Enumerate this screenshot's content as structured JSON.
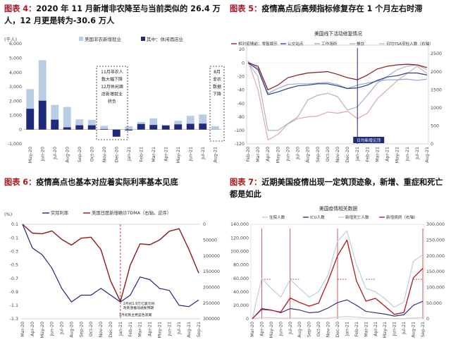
{
  "chart_data": [
    {
      "type": "bar",
      "label": "图表 4：",
      "title": "2020 年 11 月新增非农降至与当前类似的 26.4 万人，12 月更是转为-30.6 万人",
      "unit_label": "(千人)",
      "legend": [
        "美国非农新增就业",
        "其中：休闲酒店业"
      ],
      "legend_position": "top",
      "categories": [
        "May-20",
        "Jun-20",
        "Jul-20",
        "Aug-20",
        "Sep-20",
        "Oct-20",
        "Nov-20",
        "Dec-20",
        "Jan-21",
        "Feb-21",
        "Mar-21",
        "Apr-21",
        "May-21",
        "Jun-21",
        "Jul-21",
        "Aug-21"
      ],
      "series": [
        {
          "name": "美国非农新增就业",
          "color": "#b8cce4",
          "values": [
            2833,
            4846,
            1726,
            1583,
            716,
            680,
            264,
            -306,
            233,
            536,
            785,
            269,
            614,
            962,
            1053,
            235
          ]
        },
        {
          "name": "其中：休闲酒店业",
          "color": "#1f2a7a",
          "values": [
            1454,
            2018,
            690,
            158,
            300,
            300,
            40,
            -498,
            -61,
            390,
            322,
            295,
            363,
            403,
            415,
            0
          ]
        }
      ],
      "ylim": [
        -1000,
        6000
      ],
      "yticks": [
        "6,000",
        "5,000",
        "4,000",
        "3,000",
        "2,000",
        "1,000",
        "0",
        "-1,000"
      ],
      "annotations": [
        {
          "text_lines": [
            "11月非农人",
            "数大幅下降",
            "12月休闲酒",
            "店新增就业",
            "转负"
          ]
        },
        {
          "text_lines": [
            "8月",
            "非农",
            "数据",
            "下降"
          ]
        }
      ]
    },
    {
      "type": "line",
      "label": "图表 5：",
      "title": "疫情高点后高频指标修复存在 1 个月左右时滞",
      "chart_title": "美国线下活动修复情况",
      "legend": [
        "相对疫情前：零售娱乐",
        "公交站点",
        "工作场所",
        "餐饮",
        "日均TSA安检人数（右轴）"
      ],
      "legend_position": "top",
      "x_ticks": [
        "Feb-20",
        "Mar-20",
        "Apr-20",
        "May-20",
        "Jun-20",
        "Jul-20",
        "Aug-20",
        "Sep-20",
        "Oct-20",
        "Nov-20",
        "Dec-20",
        "Jan-21",
        "Feb-21",
        "Mar-21",
        "Apr-21",
        "May-21",
        "Jun-21",
        "Jul-21",
        "Aug-21"
      ],
      "y_left_ticks": [
        "20",
        "0",
        "-20",
        "-40",
        "-60",
        "-80",
        "-100",
        "-120"
      ],
      "y_right_ticks": [
        "2500",
        "2000",
        "1500",
        "1000",
        "500",
        "0"
      ],
      "ylim_left": [
        -120,
        20
      ],
      "ylim_right": [
        0,
        2500
      ],
      "annotation": "日均新增见顶",
      "series": [
        {
          "name": "相对疫情前：零售娱乐",
          "color": "#8b1a1a",
          "axis": "left",
          "values": [
            0,
            -5,
            -40,
            -33,
            -22,
            -18,
            -15,
            -14,
            -13,
            -17,
            -22,
            -25,
            -18,
            -9,
            -5,
            -3,
            -2,
            -3,
            -7
          ]
        },
        {
          "name": "公交站点",
          "color": "#2a3d8f",
          "axis": "left",
          "values": [
            0,
            -10,
            -47,
            -43,
            -38,
            -34,
            -33,
            -31,
            -31,
            -34,
            -38,
            -37,
            -33,
            -26,
            -21,
            -19,
            -15,
            -15,
            -18
          ]
        },
        {
          "name": "工作场所",
          "color": "#9aa8cc",
          "axis": "left",
          "values": [
            2,
            -8,
            -45,
            -38,
            -32,
            -31,
            -31,
            -30,
            -29,
            -32,
            -38,
            -33,
            -30,
            -27,
            -25,
            -25,
            -24,
            -26,
            -24
          ]
        },
        {
          "name": "餐饮",
          "color": "#aab4cc",
          "axis": "left",
          "values": [
            0,
            -20,
            -100,
            -100,
            -90,
            -80,
            -55,
            -48,
            -45,
            -50,
            -70,
            -65,
            -48,
            -30,
            -20,
            -10,
            -5,
            -3,
            -10
          ]
        },
        {
          "name": "日均TSA安检人数（右轴）",
          "color": "#e0a8a8",
          "axis": "right",
          "values": [
            2300,
            1500,
            110,
            260,
            550,
            700,
            750,
            770,
            880,
            850,
            900,
            700,
            850,
            1250,
            1500,
            1750,
            1950,
            2150,
            1950
          ]
        }
      ]
    },
    {
      "type": "line",
      "label": "图表 6：",
      "title": "疫情高点也基本对应着实际利率基本见底",
      "unit_label": "(%)",
      "legend": [
        "实际利率",
        "美国日度新增确诊7DMA（右轴，逆序）"
      ],
      "legend_position": "top",
      "x_ticks": [
        "Mar-20",
        "Apr-20",
        "May-20",
        "Jun-20",
        "Jul-20",
        "Aug-20",
        "Sep-20",
        "Oct-20",
        "Nov-20",
        "Dec-20",
        "Jan-21",
        "Feb-21",
        "Mar-21",
        "Apr-21",
        "May-21",
        "Jun-21",
        "Jul-21",
        "Aug-21",
        "Sep-21"
      ],
      "y_left_ticks": [
        "0.1",
        "-0.1",
        "-0.3",
        "-0.5",
        "-0.7",
        "-0.9",
        "-1.1",
        "-1.3"
      ],
      "y_right_ticks": [
        "0",
        "50000",
        "100000",
        "150000",
        "200000",
        "250000",
        "300000"
      ],
      "ylim_left": [
        -1.3,
        0.1
      ],
      "ylim_right_inverted": [
        300000,
        0
      ],
      "annotations": [
        "2月初1.9万亿美元财",
        "政刺激推动通胀预期",
        "1月初民主党蓝色浪潮"
      ],
      "series": [
        {
          "name": "实际利率",
          "color": "#1f2a7a",
          "axis": "left",
          "values": [
            0.1,
            -0.25,
            -0.35,
            -0.55,
            -0.85,
            -1.05,
            -0.95,
            -0.95,
            -0.85,
            -0.95,
            -1.05,
            -0.95,
            -0.68,
            -0.72,
            -0.85,
            -0.88,
            -1.1,
            -1.12,
            -1.02
          ]
        },
        {
          "name": "美国日度新增确诊7DMA（右轴，逆序）",
          "color": "#8b1a1a",
          "axis": "right",
          "values": [
            0,
            28000,
            30000,
            21000,
            48000,
            66000,
            44000,
            41000,
            80000,
            180000,
            245000,
            130000,
            62000,
            65000,
            50000,
            22000,
            14000,
            80000,
            155000
          ]
        }
      ]
    },
    {
      "type": "line",
      "label": "图表 7：",
      "title": "近期美国疫情出现一定筑顶迹象，新增、重症和死亡都是如此",
      "chart_title": "美国疫情相关数据",
      "legend": [
        "住院人数",
        "ICU人数",
        "新增死亡人数",
        "新增病例（右轴）"
      ],
      "legend_position": "top",
      "x_ticks": [
        "Mar-20",
        "Apr-20",
        "May-20",
        "Jun-20",
        "Jul-20",
        "Aug-20",
        "Sep-20",
        "Oct-20",
        "Nov-20",
        "Dec-20",
        "Jan-21",
        "Feb-21",
        "Mar-21",
        "Apr-21",
        "May-21",
        "Jun-21",
        "Jul-21",
        "Aug-21",
        "Sep-21"
      ],
      "y_left_ticks": [
        "140,000",
        "120,000",
        "100,000",
        "80,000",
        "60,000",
        "40,000",
        "20,000",
        "0"
      ],
      "y_right_ticks": [
        "300,000",
        "250,000",
        "200,000",
        "150,000",
        "100,000",
        "50,000",
        "0"
      ],
      "ylim_left": [
        0,
        140000
      ],
      "ylim_right": [
        0,
        300000
      ],
      "series": [
        {
          "name": "住院人数",
          "color": "#b8c8e0",
          "axis": "left",
          "values": [
            0,
            60000,
            45000,
            32000,
            58000,
            45000,
            32000,
            40000,
            65000,
            115000,
            130000,
            80000,
            45000,
            40000,
            30000,
            17000,
            25000,
            85000,
            95000
          ]
        },
        {
          "name": "ICU人数",
          "color": "#1f2a7a",
          "axis": "left",
          "values": [
            0,
            15000,
            13000,
            9000,
            15000,
            13000,
            9000,
            10000,
            16000,
            24000,
            28000,
            20000,
            11000,
            9000,
            7000,
            4000,
            6000,
            20000,
            26000
          ]
        },
        {
          "name": "新增死亡人数",
          "color": "#d8c4c4",
          "axis": "left",
          "values": [
            0,
            2100,
            1600,
            900,
            1000,
            1100,
            800,
            800,
            1200,
            2500,
            3300,
            2500,
            1300,
            800,
            600,
            300,
            300,
            1200,
            1900
          ]
        },
        {
          "name": "新增病例（右轴）",
          "color": "#b5121b",
          "axis": "right",
          "values": [
            0,
            30000,
            27000,
            21000,
            66000,
            52000,
            40000,
            50000,
            120000,
            200000,
            250000,
            120000,
            56000,
            65000,
            40000,
            14000,
            20000,
            130000,
            160000
          ]
        }
      ]
    }
  ]
}
